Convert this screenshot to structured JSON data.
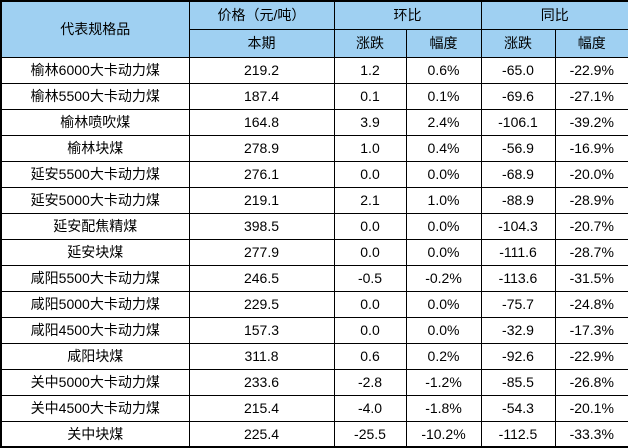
{
  "colors": {
    "header_bg": "#9fd0f2",
    "border": "#000000",
    "row_bg": "#ffffff",
    "text": "#000000"
  },
  "table": {
    "header": {
      "product": "代表规格品",
      "price_group": "价格（元/吨）",
      "current_period": "本期",
      "mom": "环比",
      "yoy": "同比",
      "change": "涨跌",
      "rate": "幅度"
    },
    "rows": [
      {
        "name": "榆林6000大卡动力煤",
        "price": "219.2",
        "mom_change": "1.2",
        "mom_rate": "0.6%",
        "yoy_change": "-65.0",
        "yoy_rate": "-22.9%"
      },
      {
        "name": "榆林5500大卡动力煤",
        "price": "187.4",
        "mom_change": "0.1",
        "mom_rate": "0.1%",
        "yoy_change": "-69.6",
        "yoy_rate": "-27.1%"
      },
      {
        "name": "榆林喷吹煤",
        "price": "164.8",
        "mom_change": "3.9",
        "mom_rate": "2.4%",
        "yoy_change": "-106.1",
        "yoy_rate": "-39.2%"
      },
      {
        "name": "榆林块煤",
        "price": "278.9",
        "mom_change": "1.0",
        "mom_rate": "0.4%",
        "yoy_change": "-56.9",
        "yoy_rate": "-16.9%"
      },
      {
        "name": "延安5500大卡动力煤",
        "price": "276.1",
        "mom_change": "0.0",
        "mom_rate": "0.0%",
        "yoy_change": "-68.9",
        "yoy_rate": "-20.0%"
      },
      {
        "name": "延安5000大卡动力煤",
        "price": "219.1",
        "mom_change": "2.1",
        "mom_rate": "1.0%",
        "yoy_change": "-88.9",
        "yoy_rate": "-28.9%"
      },
      {
        "name": "延安配焦精煤",
        "price": "398.5",
        "mom_change": "0.0",
        "mom_rate": "0.0%",
        "yoy_change": "-104.3",
        "yoy_rate": "-20.7%"
      },
      {
        "name": "延安块煤",
        "price": "277.9",
        "mom_change": "0.0",
        "mom_rate": "0.0%",
        "yoy_change": "-111.6",
        "yoy_rate": "-28.7%"
      },
      {
        "name": "咸阳5500大卡动力煤",
        "price": "246.5",
        "mom_change": "-0.5",
        "mom_rate": "-0.2%",
        "yoy_change": "-113.6",
        "yoy_rate": "-31.5%"
      },
      {
        "name": "咸阳5000大卡动力煤",
        "price": "229.5",
        "mom_change": "0.0",
        "mom_rate": "0.0%",
        "yoy_change": "-75.7",
        "yoy_rate": "-24.8%"
      },
      {
        "name": "咸阳4500大卡动力煤",
        "price": "157.3",
        "mom_change": "0.0",
        "mom_rate": "0.0%",
        "yoy_change": "-32.9",
        "yoy_rate": "-17.3%"
      },
      {
        "name": "咸阳块煤",
        "price": "311.8",
        "mom_change": "0.6",
        "mom_rate": "0.2%",
        "yoy_change": "-92.6",
        "yoy_rate": "-22.9%"
      },
      {
        "name": "关中5000大卡动力煤",
        "price": "233.6",
        "mom_change": "-2.8",
        "mom_rate": "-1.2%",
        "yoy_change": "-85.5",
        "yoy_rate": "-26.8%"
      },
      {
        "name": "关中4500大卡动力煤",
        "price": "215.4",
        "mom_change": "-4.0",
        "mom_rate": "-1.8%",
        "yoy_change": "-54.3",
        "yoy_rate": "-20.1%"
      },
      {
        "name": "关中块煤",
        "price": "225.4",
        "mom_change": "-25.5",
        "mom_rate": "-10.2%",
        "yoy_change": "-112.5",
        "yoy_rate": "-33.3%"
      }
    ]
  }
}
